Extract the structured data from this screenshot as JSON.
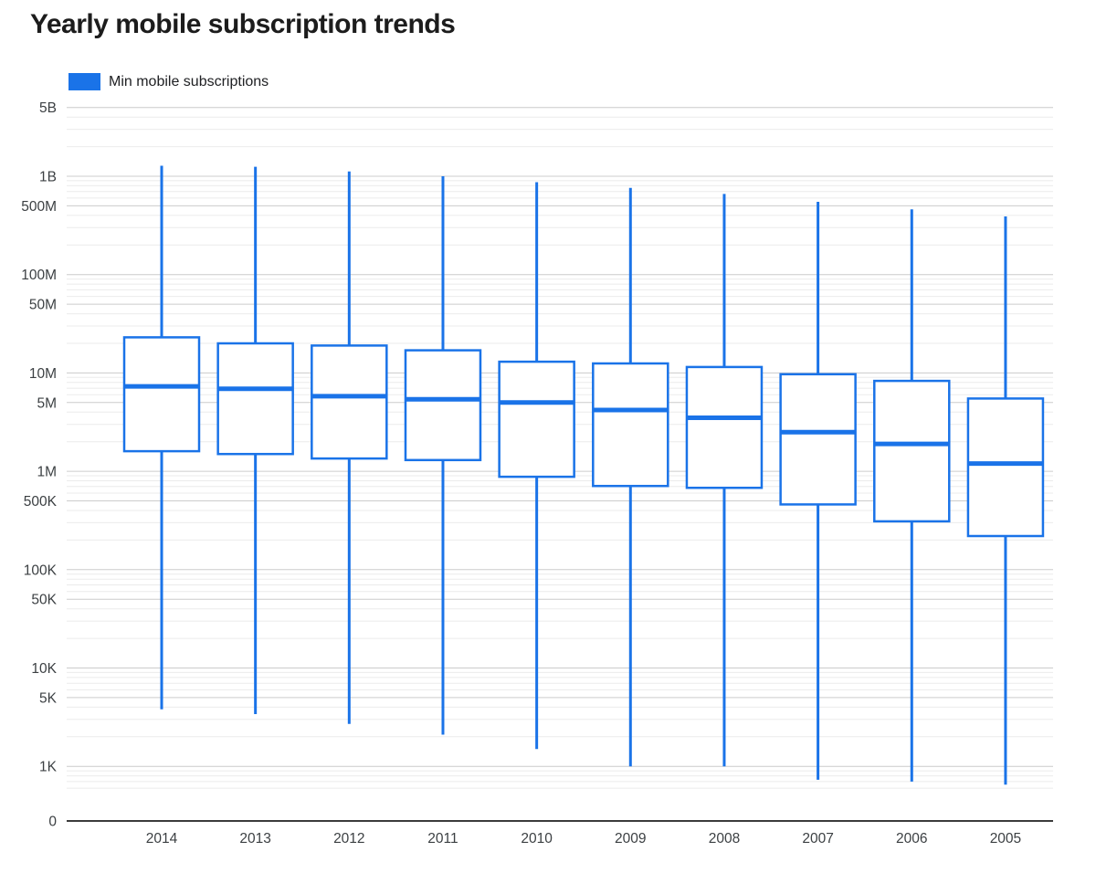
{
  "title": "Yearly mobile subscription trends",
  "legend": {
    "label": "Min mobile subscriptions",
    "swatch_color": "#1a73e8"
  },
  "chart_data": {
    "type": "boxplot",
    "title": "Yearly mobile subscription trends",
    "legend_entries": [
      "Min mobile subscriptions"
    ],
    "x_categories": [
      "2014",
      "2013",
      "2012",
      "2011",
      "2010",
      "2009",
      "2008",
      "2007",
      "2006",
      "2005"
    ],
    "y_axis": {
      "scale": "log",
      "range_top": 5000000000,
      "baseline_label": "0",
      "ticks": [
        {
          "label": "5B",
          "value": 5000000000
        },
        {
          "label": "1B",
          "value": 1000000000
        },
        {
          "label": "500M",
          "value": 500000000
        },
        {
          "label": "100M",
          "value": 100000000
        },
        {
          "label": "50M",
          "value": 50000000
        },
        {
          "label": "10M",
          "value": 10000000
        },
        {
          "label": "5M",
          "value": 5000000
        },
        {
          "label": "1M",
          "value": 1000000
        },
        {
          "label": "500K",
          "value": 500000
        },
        {
          "label": "100K",
          "value": 100000
        },
        {
          "label": "50K",
          "value": 50000
        },
        {
          "label": "10K",
          "value": 10000
        },
        {
          "label": "5K",
          "value": 5000
        },
        {
          "label": "1K",
          "value": 1000
        }
      ],
      "grid": "on",
      "vertical_grid": "off"
    },
    "series": [
      {
        "category": "2014",
        "min": 3800,
        "q1": 1600000,
        "median": 7300000,
        "q3": 23000000,
        "max": 1280000000
      },
      {
        "category": "2013",
        "min": 3400,
        "q1": 1500000,
        "median": 6900000,
        "q3": 20000000,
        "max": 1250000000
      },
      {
        "category": "2012",
        "min": 2700,
        "q1": 1350000,
        "median": 5800000,
        "q3": 19000000,
        "max": 1120000000
      },
      {
        "category": "2011",
        "min": 2100,
        "q1": 1300000,
        "median": 5400000,
        "q3": 17000000,
        "max": 1000000000
      },
      {
        "category": "2010",
        "min": 1500,
        "q1": 880000,
        "median": 5000000,
        "q3": 13000000,
        "max": 870000000
      },
      {
        "category": "2009",
        "min": 1000,
        "q1": 710000,
        "median": 4200000,
        "q3": 12500000,
        "max": 760000000
      },
      {
        "category": "2008",
        "min": 1000,
        "q1": 680000,
        "median": 3500000,
        "q3": 11500000,
        "max": 660000000
      },
      {
        "category": "2007",
        "min": 730,
        "q1": 460000,
        "median": 2500000,
        "q3": 9700000,
        "max": 550000000
      },
      {
        "category": "2006",
        "min": 700,
        "q1": 310000,
        "median": 1900000,
        "q3": 8300000,
        "max": 460000000
      },
      {
        "category": "2005",
        "min": 650,
        "q1": 220000,
        "median": 1200000,
        "q3": 5500000,
        "max": 390000000
      }
    ],
    "colors": {
      "box_stroke": "#1a73e8",
      "box_fill": "#ffffff",
      "grid_major": "#cccccc",
      "grid_minor": "#ebebeb",
      "axis_baseline": "#3b3b3b",
      "axis_text": "#3c4043"
    },
    "legend_position": "top-left"
  }
}
